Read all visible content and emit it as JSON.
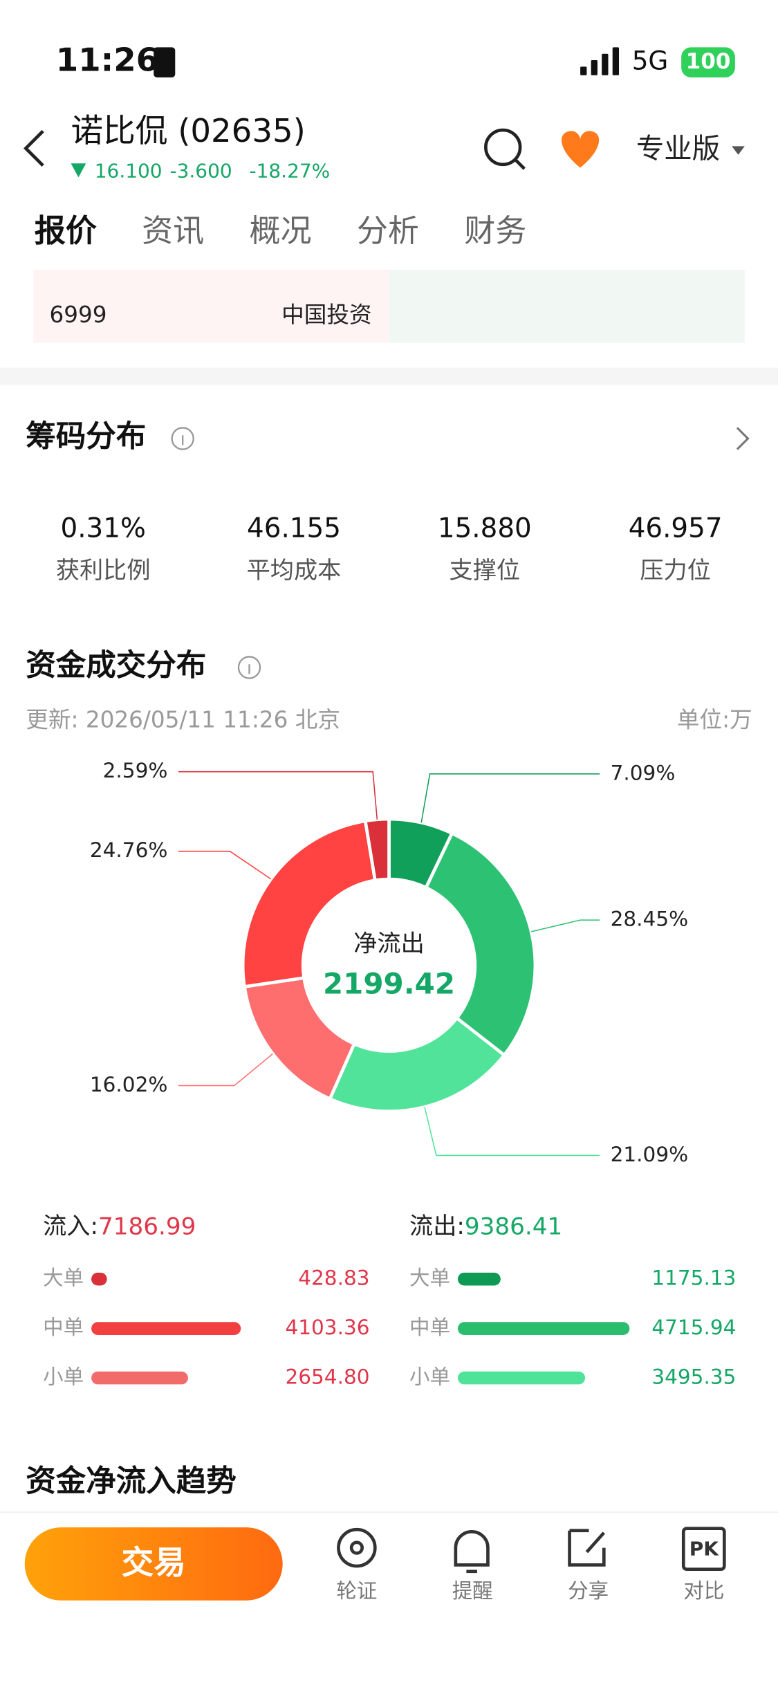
{
  "status_bar": {
    "time": "11:26",
    "network": "5G",
    "battery": "100"
  },
  "header": {
    "name": "诺比侃 (02635)",
    "price": "16.100",
    "change": "-3.600",
    "change_pct": "-18.27%",
    "edition": "专业版"
  },
  "tabs": [
    "报价",
    "资讯",
    "概况",
    "分析",
    "财务"
  ],
  "partial_row": {
    "left_number": "6999",
    "left_name": "中国投资"
  },
  "chip_distribution": {
    "title": "筹码分布",
    "stats": [
      {
        "value": "0.31%",
        "label": "获利比例"
      },
      {
        "value": "46.155",
        "label": "平均成本"
      },
      {
        "value": "15.880",
        "label": "支撑位"
      },
      {
        "value": "46.957",
        "label": "压力位"
      }
    ]
  },
  "capital_distribution": {
    "title": "资金成交分布",
    "updated": "更新: 2026/05/11 11:26 北京",
    "unit": "单位:万",
    "center_label": "净流出",
    "center_value": "2199.42",
    "chart_data": {
      "type": "donut",
      "values": [
        7.09,
        28.45,
        21.09,
        16.02,
        24.76,
        2.59
      ],
      "value_labels": [
        "7.09%",
        "28.45%",
        "21.09%",
        "16.02%",
        "24.76%",
        "2.59%"
      ],
      "colors": [
        "#11a05a",
        "#2cc173",
        "#52e39a",
        "#ff6e6e",
        "#ff4242",
        "#d9303a"
      ]
    },
    "inflow": {
      "label": "流入:",
      "total": "7186.99",
      "rows": [
        {
          "name": "大单",
          "value": 428.83,
          "label": "428.83",
          "color": "#d9303a"
        },
        {
          "name": "中单",
          "value": 4103.36,
          "label": "4103.36",
          "color": "#f24040"
        },
        {
          "name": "小单",
          "value": 2654.8,
          "label": "2654.80",
          "color": "#f26b6b"
        }
      ]
    },
    "outflow": {
      "label": "流出:",
      "total": "9386.41",
      "rows": [
        {
          "name": "大单",
          "value": 1175.13,
          "label": "1175.13",
          "color": "#0e9a55"
        },
        {
          "name": "中单",
          "value": 4715.94,
          "label": "4715.94",
          "color": "#2bbd6e"
        },
        {
          "name": "小单",
          "value": 3495.35,
          "label": "3495.35",
          "color": "#4fe39a"
        }
      ]
    }
  },
  "trend": {
    "title": "资金净流入趋势"
  },
  "bottom_bar": {
    "trade": "交易",
    "actions": [
      "轮证",
      "提醒",
      "分享",
      "对比"
    ]
  }
}
